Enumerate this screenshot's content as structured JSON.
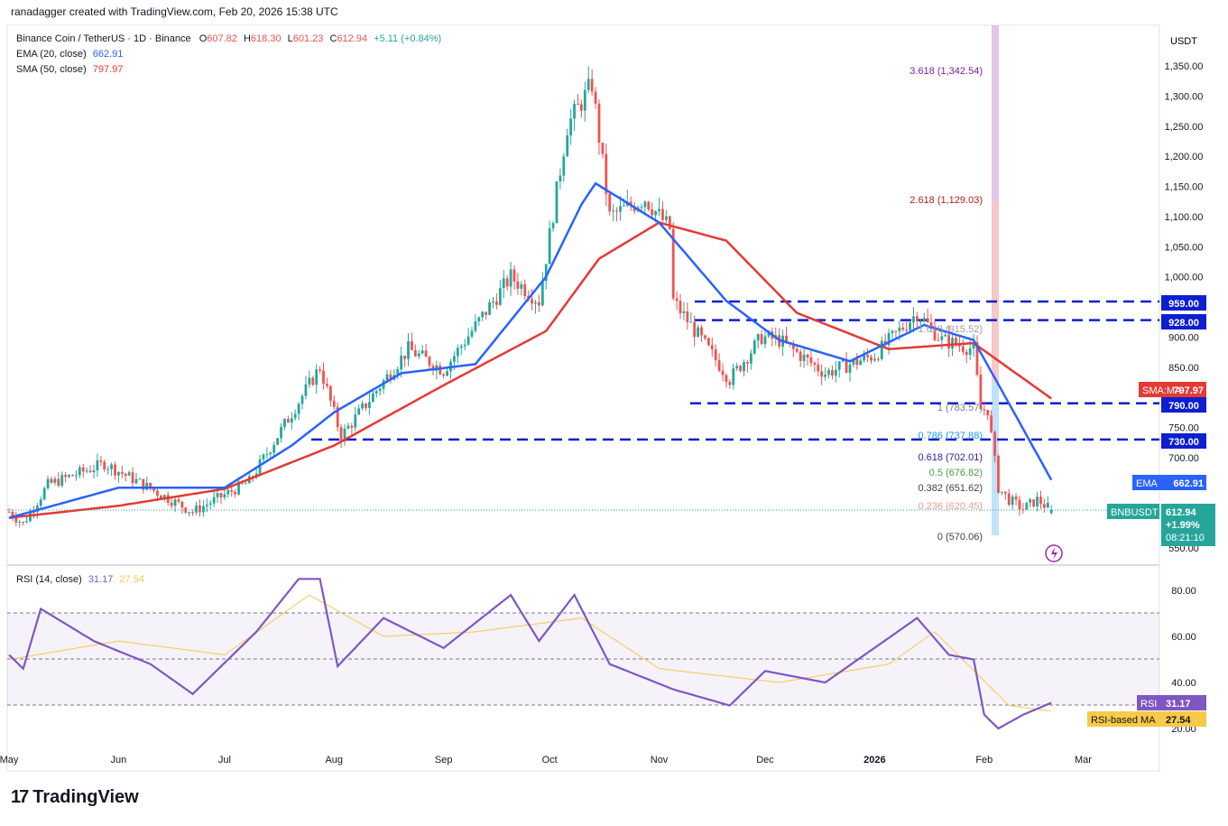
{
  "header": {
    "attribution": "ranadagger created with TradingView.com, Feb 20, 2026 15:38 UTC"
  },
  "legend": {
    "symbol": "Binance Coin / TetherUS · 1D · Binance",
    "o_label": "O",
    "o": "607.82",
    "h_label": "H",
    "h": "618.30",
    "l_label": "L",
    "l": "601.23",
    "c_label": "C",
    "c": "612.94",
    "change": "+5.11 (+0.84%)",
    "ema_label": "EMA (20, close)",
    "ema_value": "662.91",
    "sma_label": "SMA (50, close)",
    "sma_value": "797.97",
    "rsi_label": "RSI (14, close)",
    "rsi_value": "31.17",
    "rsi_ma_value": "27.54"
  },
  "axis": {
    "currency": "USDT",
    "price_ticks": [
      "1,350.00",
      "1,300.00",
      "1,250.00",
      "1,200.00",
      "1,150.00",
      "1,100.00",
      "1,050.00",
      "1,000.00",
      "900.00",
      "850.00",
      "750.00",
      "700.00",
      "550.00"
    ],
    "rsi_ticks": [
      "80.00",
      "60.00",
      "40.00",
      "20.00"
    ],
    "month_labels": [
      "May",
      "Jun",
      "Jul",
      "Aug",
      "Sep",
      "Oct",
      "Nov",
      "Dec",
      "2026",
      "Feb",
      "Mar"
    ]
  },
  "badges": {
    "level_959": "959.00",
    "level_928": "928.00",
    "level_790": "790.00",
    "level_730": "730.00",
    "sma_tag": "SMA:MA",
    "sma_val": "797.97",
    "ema_tag": "EMA",
    "ema_val": "662.91",
    "ticker": "BNBUSDT",
    "last_price": "612.94",
    "last_change": "+1.99%",
    "countdown": "08:21:10",
    "rsi_tag": "RSI",
    "rsi_val": "31.17",
    "rsi_ma_tag": "RSI-based MA",
    "rsi_ma_val": "27.54"
  },
  "fib": {
    "f3618": "3.618 (1,342.54)",
    "f2618": "2.618 (1,129.03)",
    "f1618": "1.618 (915.52)",
    "f1": "1 (783.57)",
    "f786": "0.786 (737.88)",
    "f618": "0.618 (702.01)",
    "f5": "0.5 (676.82)",
    "f382": "0.382 (651.62)",
    "f236": "0.236 (620.45)",
    "f0": "0 (570.06)"
  },
  "brand": {
    "logo_text": "TradingView",
    "logo_mark": "17"
  },
  "colors": {
    "up": "#26a69a",
    "down": "#ef5350",
    "ema": "#2962ff",
    "sma": "#e53935",
    "rsi": "#7e57c2",
    "rsi_ma": "#f7c948",
    "level": "#0d1fcf"
  },
  "chart_data": {
    "type": "candlestick",
    "symbol": "BNBUSDT",
    "timeframe": "1D",
    "x_range": [
      "2025-05-01",
      "2026-03-03"
    ],
    "y_range": [
      540,
      1375
    ],
    "price_anchors": [
      {
        "date": "2025-05-01",
        "price": 610
      },
      {
        "date": "2025-05-05",
        "price": 590
      },
      {
        "date": "2025-05-12",
        "price": 655
      },
      {
        "date": "2025-05-28",
        "price": 690
      },
      {
        "date": "2025-06-22",
        "price": 610
      },
      {
        "date": "2025-07-08",
        "price": 660
      },
      {
        "date": "2025-07-28",
        "price": 850
      },
      {
        "date": "2025-08-03",
        "price": 735
      },
      {
        "date": "2025-08-22",
        "price": 880
      },
      {
        "date": "2025-09-01",
        "price": 845
      },
      {
        "date": "2025-09-20",
        "price": 1000
      },
      {
        "date": "2025-09-28",
        "price": 960
      },
      {
        "date": "2025-10-06",
        "price": 1250
      },
      {
        "date": "2025-10-13",
        "price": 1320
      },
      {
        "date": "2025-10-18",
        "price": 1100
      },
      {
        "date": "2025-10-28",
        "price": 1130
      },
      {
        "date": "2025-11-04",
        "price": 1080
      },
      {
        "date": "2025-11-05",
        "price": 960
      },
      {
        "date": "2025-11-21",
        "price": 830
      },
      {
        "date": "2025-11-30",
        "price": 900
      },
      {
        "date": "2025-12-05",
        "price": 895
      },
      {
        "date": "2025-12-18",
        "price": 840
      },
      {
        "date": "2026-01-01",
        "price": 870
      },
      {
        "date": "2026-01-13",
        "price": 940
      },
      {
        "date": "2026-01-20",
        "price": 895
      },
      {
        "date": "2026-01-29",
        "price": 880
      },
      {
        "date": "2026-01-31",
        "price": 780
      },
      {
        "date": "2026-02-02",
        "price": 780
      },
      {
        "date": "2026-02-05",
        "price": 650
      },
      {
        "date": "2026-02-08",
        "price": 630
      },
      {
        "date": "2026-02-12",
        "price": 615
      },
      {
        "date": "2026-02-16",
        "price": 630
      },
      {
        "date": "2026-02-20",
        "price": 612.94
      }
    ],
    "ema20": [
      {
        "date": "2025-05-01",
        "value": 600
      },
      {
        "date": "2025-06-01",
        "value": 650
      },
      {
        "date": "2025-07-01",
        "value": 650
      },
      {
        "date": "2025-07-20",
        "value": 720
      },
      {
        "date": "2025-08-01",
        "value": 775
      },
      {
        "date": "2025-08-20",
        "value": 840
      },
      {
        "date": "2025-09-10",
        "value": 855
      },
      {
        "date": "2025-09-30",
        "value": 1000
      },
      {
        "date": "2025-10-10",
        "value": 1120
      },
      {
        "date": "2025-10-14",
        "value": 1155
      },
      {
        "date": "2025-11-01",
        "value": 1090
      },
      {
        "date": "2025-11-20",
        "value": 960
      },
      {
        "date": "2025-12-05",
        "value": 895
      },
      {
        "date": "2025-12-25",
        "value": 860
      },
      {
        "date": "2026-01-15",
        "value": 920
      },
      {
        "date": "2026-01-29",
        "value": 895
      },
      {
        "date": "2026-02-08",
        "value": 790
      },
      {
        "date": "2026-02-20",
        "value": 662.91
      }
    ],
    "sma50": [
      {
        "date": "2025-05-01",
        "value": 600
      },
      {
        "date": "2025-06-01",
        "value": 620
      },
      {
        "date": "2025-07-01",
        "value": 648
      },
      {
        "date": "2025-08-01",
        "value": 720
      },
      {
        "date": "2025-09-01",
        "value": 820
      },
      {
        "date": "2025-09-30",
        "value": 910
      },
      {
        "date": "2025-10-15",
        "value": 1030
      },
      {
        "date": "2025-11-01",
        "value": 1090
      },
      {
        "date": "2025-11-20",
        "value": 1060
      },
      {
        "date": "2025-12-10",
        "value": 940
      },
      {
        "date": "2026-01-05",
        "value": 880
      },
      {
        "date": "2026-01-29",
        "value": 890
      },
      {
        "date": "2026-02-20",
        "value": 797.97
      }
    ],
    "horizontal_levels": [
      959,
      928,
      790,
      730
    ],
    "fibonacci": [
      {
        "ratio": 3.618,
        "price": 1342.54
      },
      {
        "ratio": 2.618,
        "price": 1129.03
      },
      {
        "ratio": 1.618,
        "price": 915.52
      },
      {
        "ratio": 1,
        "price": 783.57
      },
      {
        "ratio": 0.786,
        "price": 737.88
      },
      {
        "ratio": 0.618,
        "price": 702.01
      },
      {
        "ratio": 0.5,
        "price": 676.82
      },
      {
        "ratio": 0.382,
        "price": 651.62
      },
      {
        "ratio": 0.236,
        "price": 620.45
      },
      {
        "ratio": 0,
        "price": 570.06
      }
    ],
    "rsi": {
      "range": [
        15,
        90
      ],
      "bands": [
        70,
        50,
        30
      ],
      "rsi_anchors": [
        {
          "date": "2025-05-01",
          "value": 52
        },
        {
          "date": "2025-05-05",
          "value": 46
        },
        {
          "date": "2025-05-10",
          "value": 72
        },
        {
          "date": "2025-05-25",
          "value": 58
        },
        {
          "date": "2025-06-10",
          "value": 48
        },
        {
          "date": "2025-06-22",
          "value": 35
        },
        {
          "date": "2025-07-10",
          "value": 62
        },
        {
          "date": "2025-07-22",
          "value": 85
        },
        {
          "date": "2025-07-28",
          "value": 85
        },
        {
          "date": "2025-08-02",
          "value": 47
        },
        {
          "date": "2025-08-15",
          "value": 68
        },
        {
          "date": "2025-09-01",
          "value": 55
        },
        {
          "date": "2025-09-20",
          "value": 78
        },
        {
          "date": "2025-09-28",
          "value": 58
        },
        {
          "date": "2025-10-08",
          "value": 78
        },
        {
          "date": "2025-10-18",
          "value": 48
        },
        {
          "date": "2025-11-05",
          "value": 37
        },
        {
          "date": "2025-11-21",
          "value": 30
        },
        {
          "date": "2025-12-01",
          "value": 45
        },
        {
          "date": "2025-12-18",
          "value": 40
        },
        {
          "date": "2026-01-13",
          "value": 68
        },
        {
          "date": "2026-01-22",
          "value": 52
        },
        {
          "date": "2026-01-29",
          "value": 50
        },
        {
          "date": "2026-02-01",
          "value": 26
        },
        {
          "date": "2026-02-05",
          "value": 20
        },
        {
          "date": "2026-02-12",
          "value": 26
        },
        {
          "date": "2026-02-20",
          "value": 31.17
        }
      ],
      "rsi_ma_anchors": [
        {
          "date": "2025-05-01",
          "value": 50
        },
        {
          "date": "2025-06-01",
          "value": 58
        },
        {
          "date": "2025-07-01",
          "value": 52
        },
        {
          "date": "2025-07-25",
          "value": 78
        },
        {
          "date": "2025-08-15",
          "value": 60
        },
        {
          "date": "2025-09-10",
          "value": 62
        },
        {
          "date": "2025-10-10",
          "value": 68
        },
        {
          "date": "2025-11-01",
          "value": 46
        },
        {
          "date": "2025-12-05",
          "value": 40
        },
        {
          "date": "2026-01-05",
          "value": 48
        },
        {
          "date": "2026-01-18",
          "value": 62
        },
        {
          "date": "2026-02-08",
          "value": 30
        },
        {
          "date": "2026-02-20",
          "value": 27.54
        }
      ]
    }
  }
}
